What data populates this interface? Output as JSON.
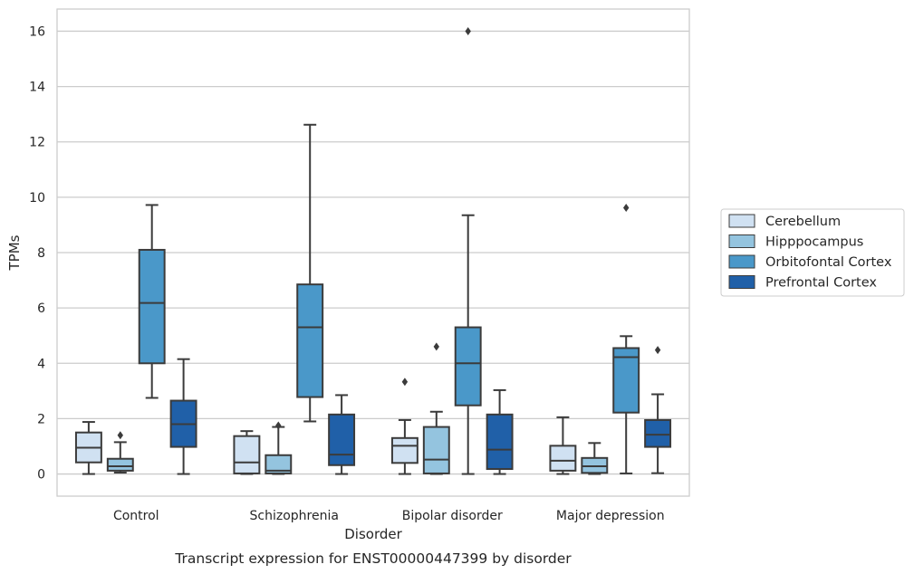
{
  "chart_data": {
    "type": "box",
    "caption": "Transcript expression for ENST00000447399 by disorder",
    "xlabel": "Disorder",
    "ylabel": "TPMs",
    "ylim": [
      -0.8,
      16.8
    ],
    "yticks": [
      0,
      2,
      4,
      6,
      8,
      10,
      12,
      14,
      16
    ],
    "grid": "horizontal",
    "legend_position": "right",
    "categories": [
      "Control",
      "Schizophrenia",
      "Bipolar disorder",
      "Major depression"
    ],
    "series": [
      {
        "name": "Cerebellum",
        "color": "#d0e1f2",
        "boxes": [
          {
            "whislo": 0.0,
            "q1": 0.42,
            "med": 0.95,
            "q3": 1.5,
            "whishi": 1.88,
            "fliers": []
          },
          {
            "whislo": 0.0,
            "q1": 0.02,
            "med": 0.42,
            "q3": 1.37,
            "whishi": 1.55,
            "fliers": []
          },
          {
            "whislo": 0.0,
            "q1": 0.4,
            "med": 1.02,
            "q3": 1.3,
            "whishi": 1.95,
            "fliers": [
              3.33
            ]
          },
          {
            "whislo": 0.0,
            "q1": 0.12,
            "med": 0.48,
            "q3": 1.02,
            "whishi": 2.05,
            "fliers": []
          }
        ]
      },
      {
        "name": "Hipppocampus",
        "color": "#94c4df",
        "boxes": [
          {
            "whislo": 0.05,
            "q1": 0.12,
            "med": 0.28,
            "q3": 0.55,
            "whishi": 1.15,
            "fliers": [
              1.4
            ]
          },
          {
            "whislo": 0.0,
            "q1": 0.02,
            "med": 0.12,
            "q3": 0.68,
            "whishi": 1.7,
            "fliers": [
              1.75
            ]
          },
          {
            "whislo": 0.0,
            "q1": 0.02,
            "med": 0.52,
            "q3": 1.7,
            "whishi": 2.25,
            "fliers": [
              4.6
            ]
          },
          {
            "whislo": 0.0,
            "q1": 0.04,
            "med": 0.28,
            "q3": 0.58,
            "whishi": 1.12,
            "fliers": []
          }
        ]
      },
      {
        "name": "Orbitofontal Cortex",
        "color": "#4a98c9",
        "boxes": [
          {
            "whislo": 2.75,
            "q1": 4.0,
            "med": 6.18,
            "q3": 8.1,
            "whishi": 9.72,
            "fliers": []
          },
          {
            "whislo": 1.9,
            "q1": 2.78,
            "med": 5.3,
            "q3": 6.85,
            "whishi": 12.62,
            "fliers": []
          },
          {
            "whislo": 0.0,
            "q1": 2.48,
            "med": 4.0,
            "q3": 5.3,
            "whishi": 9.35,
            "fliers": [
              16.0
            ]
          },
          {
            "whislo": 0.02,
            "q1": 2.22,
            "med": 4.22,
            "q3": 4.55,
            "whishi": 4.98,
            "fliers": [
              9.62
            ]
          }
        ]
      },
      {
        "name": "Prefrontal Cortex",
        "color": "#2060a8",
        "boxes": [
          {
            "whislo": 0.0,
            "q1": 0.98,
            "med": 1.8,
            "q3": 2.65,
            "whishi": 4.15,
            "fliers": []
          },
          {
            "whislo": 0.0,
            "q1": 0.32,
            "med": 0.7,
            "q3": 2.15,
            "whishi": 2.85,
            "fliers": []
          },
          {
            "whislo": 0.0,
            "q1": 0.18,
            "med": 0.88,
            "q3": 2.15,
            "whishi": 3.03,
            "fliers": []
          },
          {
            "whislo": 0.03,
            "q1": 0.98,
            "med": 1.42,
            "q3": 1.95,
            "whishi": 2.88,
            "fliers": [
              4.48
            ]
          }
        ]
      }
    ]
  }
}
